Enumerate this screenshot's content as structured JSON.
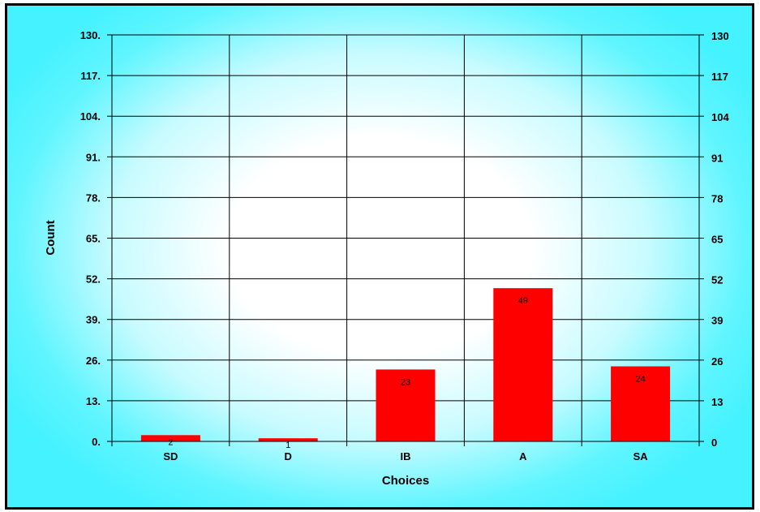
{
  "chart_data": {
    "type": "bar",
    "categories": [
      "SD",
      "D",
      "IB",
      "A",
      "SA"
    ],
    "values": [
      2,
      1,
      23,
      49,
      24
    ],
    "data_labels": [
      "2",
      "1",
      "23",
      "49",
      "24"
    ],
    "xlabel": "Choices",
    "ylabel": "Count",
    "ylim": [
      0,
      130
    ],
    "left_ticks": [
      "0.",
      "13.",
      "26.",
      "39.",
      "52.",
      "65.",
      "78.",
      "91.",
      "104.",
      "117.",
      "130."
    ],
    "right_ticks": [
      "0",
      "13",
      "26",
      "39",
      "52",
      "65",
      "78",
      "91",
      "104",
      "117",
      "130"
    ],
    "grid": true,
    "legend": "none",
    "bar_color": "#ff0000",
    "background_color": "#45f2ff"
  }
}
